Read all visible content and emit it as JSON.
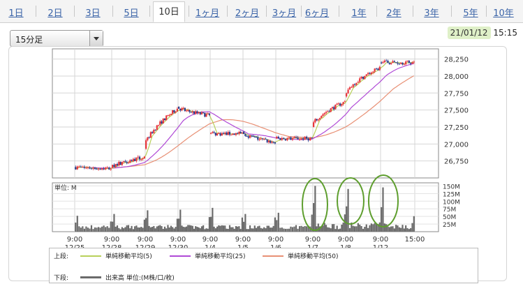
{
  "tabs": [
    {
      "label": "1日",
      "active": false
    },
    {
      "label": "2日",
      "active": false
    },
    {
      "label": "3日",
      "active": false
    },
    {
      "label": "5日",
      "active": false
    },
    {
      "label": "10日",
      "active": true
    },
    {
      "label": "1ヶ月",
      "active": false
    },
    {
      "label": "2ヶ月",
      "active": false
    },
    {
      "label": "3ヶ月",
      "active": false
    },
    {
      "label": "6ヶ月",
      "active": false
    },
    {
      "label": "1年",
      "active": false
    },
    {
      "label": "2年",
      "active": false
    },
    {
      "label": "3年",
      "active": false
    },
    {
      "label": "5年",
      "active": false
    },
    {
      "label": "10年",
      "active": false
    }
  ],
  "interval_select": {
    "value": "15分足"
  },
  "last_update": {
    "date": "21/01/12",
    "time": "15:15"
  },
  "legend": {
    "upper_label": "上段:",
    "lower_label": "下段:",
    "ma5": "単純移動平均(5)",
    "ma25": "単純移動平均(25)",
    "ma50": "単純移動平均(50)",
    "volume": "出来高 単位:(M株/口/枚)"
  },
  "colors": {
    "candle_up": "#e8343a",
    "candle_down": "#2a3d8f",
    "ma5": "#b8d05a",
    "ma25": "#b04ad6",
    "ma50": "#e89075",
    "volume": "#6b6b6b",
    "annotation": "#5e9e2e"
  },
  "chart_data": {
    "type": "candlestick",
    "price_ylim": [
      26500,
      28400
    ],
    "price_ticks": [
      "26,750",
      "27,000",
      "27,250",
      "27,500",
      "27,750",
      "28,000",
      "28,250"
    ],
    "price_tick_values": [
      26750,
      27000,
      27250,
      27500,
      27750,
      28000,
      28250
    ],
    "x_tick_labels": [
      {
        "time": "9:00",
        "date": "12/25"
      },
      {
        "time": "9:00",
        "date": "12/28"
      },
      {
        "time": "9:00",
        "date": "12/29"
      },
      {
        "time": "9:00",
        "date": "12/30"
      },
      {
        "time": "9:00",
        "date": "1/4"
      },
      {
        "time": "9:00",
        "date": "1/5"
      },
      {
        "time": "9:00",
        "date": "1/6"
      },
      {
        "time": "9:00",
        "date": "1/7"
      },
      {
        "time": "9:00",
        "date": "1/8"
      },
      {
        "time": "9:00",
        "date": "1/12"
      },
      {
        "time": "15:00",
        "date": ""
      }
    ],
    "volume_unit_label": "単位: M",
    "volume_ylim": [
      0,
      160
    ],
    "volume_ticks": [
      "25M",
      "50M",
      "75M",
      "100M",
      "125M",
      "150M"
    ],
    "volume_tick_values": [
      25,
      50,
      75,
      100,
      125,
      150
    ],
    "daily_closes": [
      26640,
      26800,
      27520,
      27420,
      27150,
      27020,
      27080,
      27620,
      28120,
      28200
    ],
    "daily_opens": [
      26660,
      26650,
      26930,
      27550,
      27150,
      27180,
      27080,
      27250,
      27700,
      28200
    ],
    "daily_volume_peak": [
      52,
      58,
      70,
      72,
      78,
      58,
      62,
      150,
      140,
      145
    ],
    "annotations": "Three hand-drawn green circles around volume spikes at 1/7, 1/8 and 1/12 9:00"
  }
}
